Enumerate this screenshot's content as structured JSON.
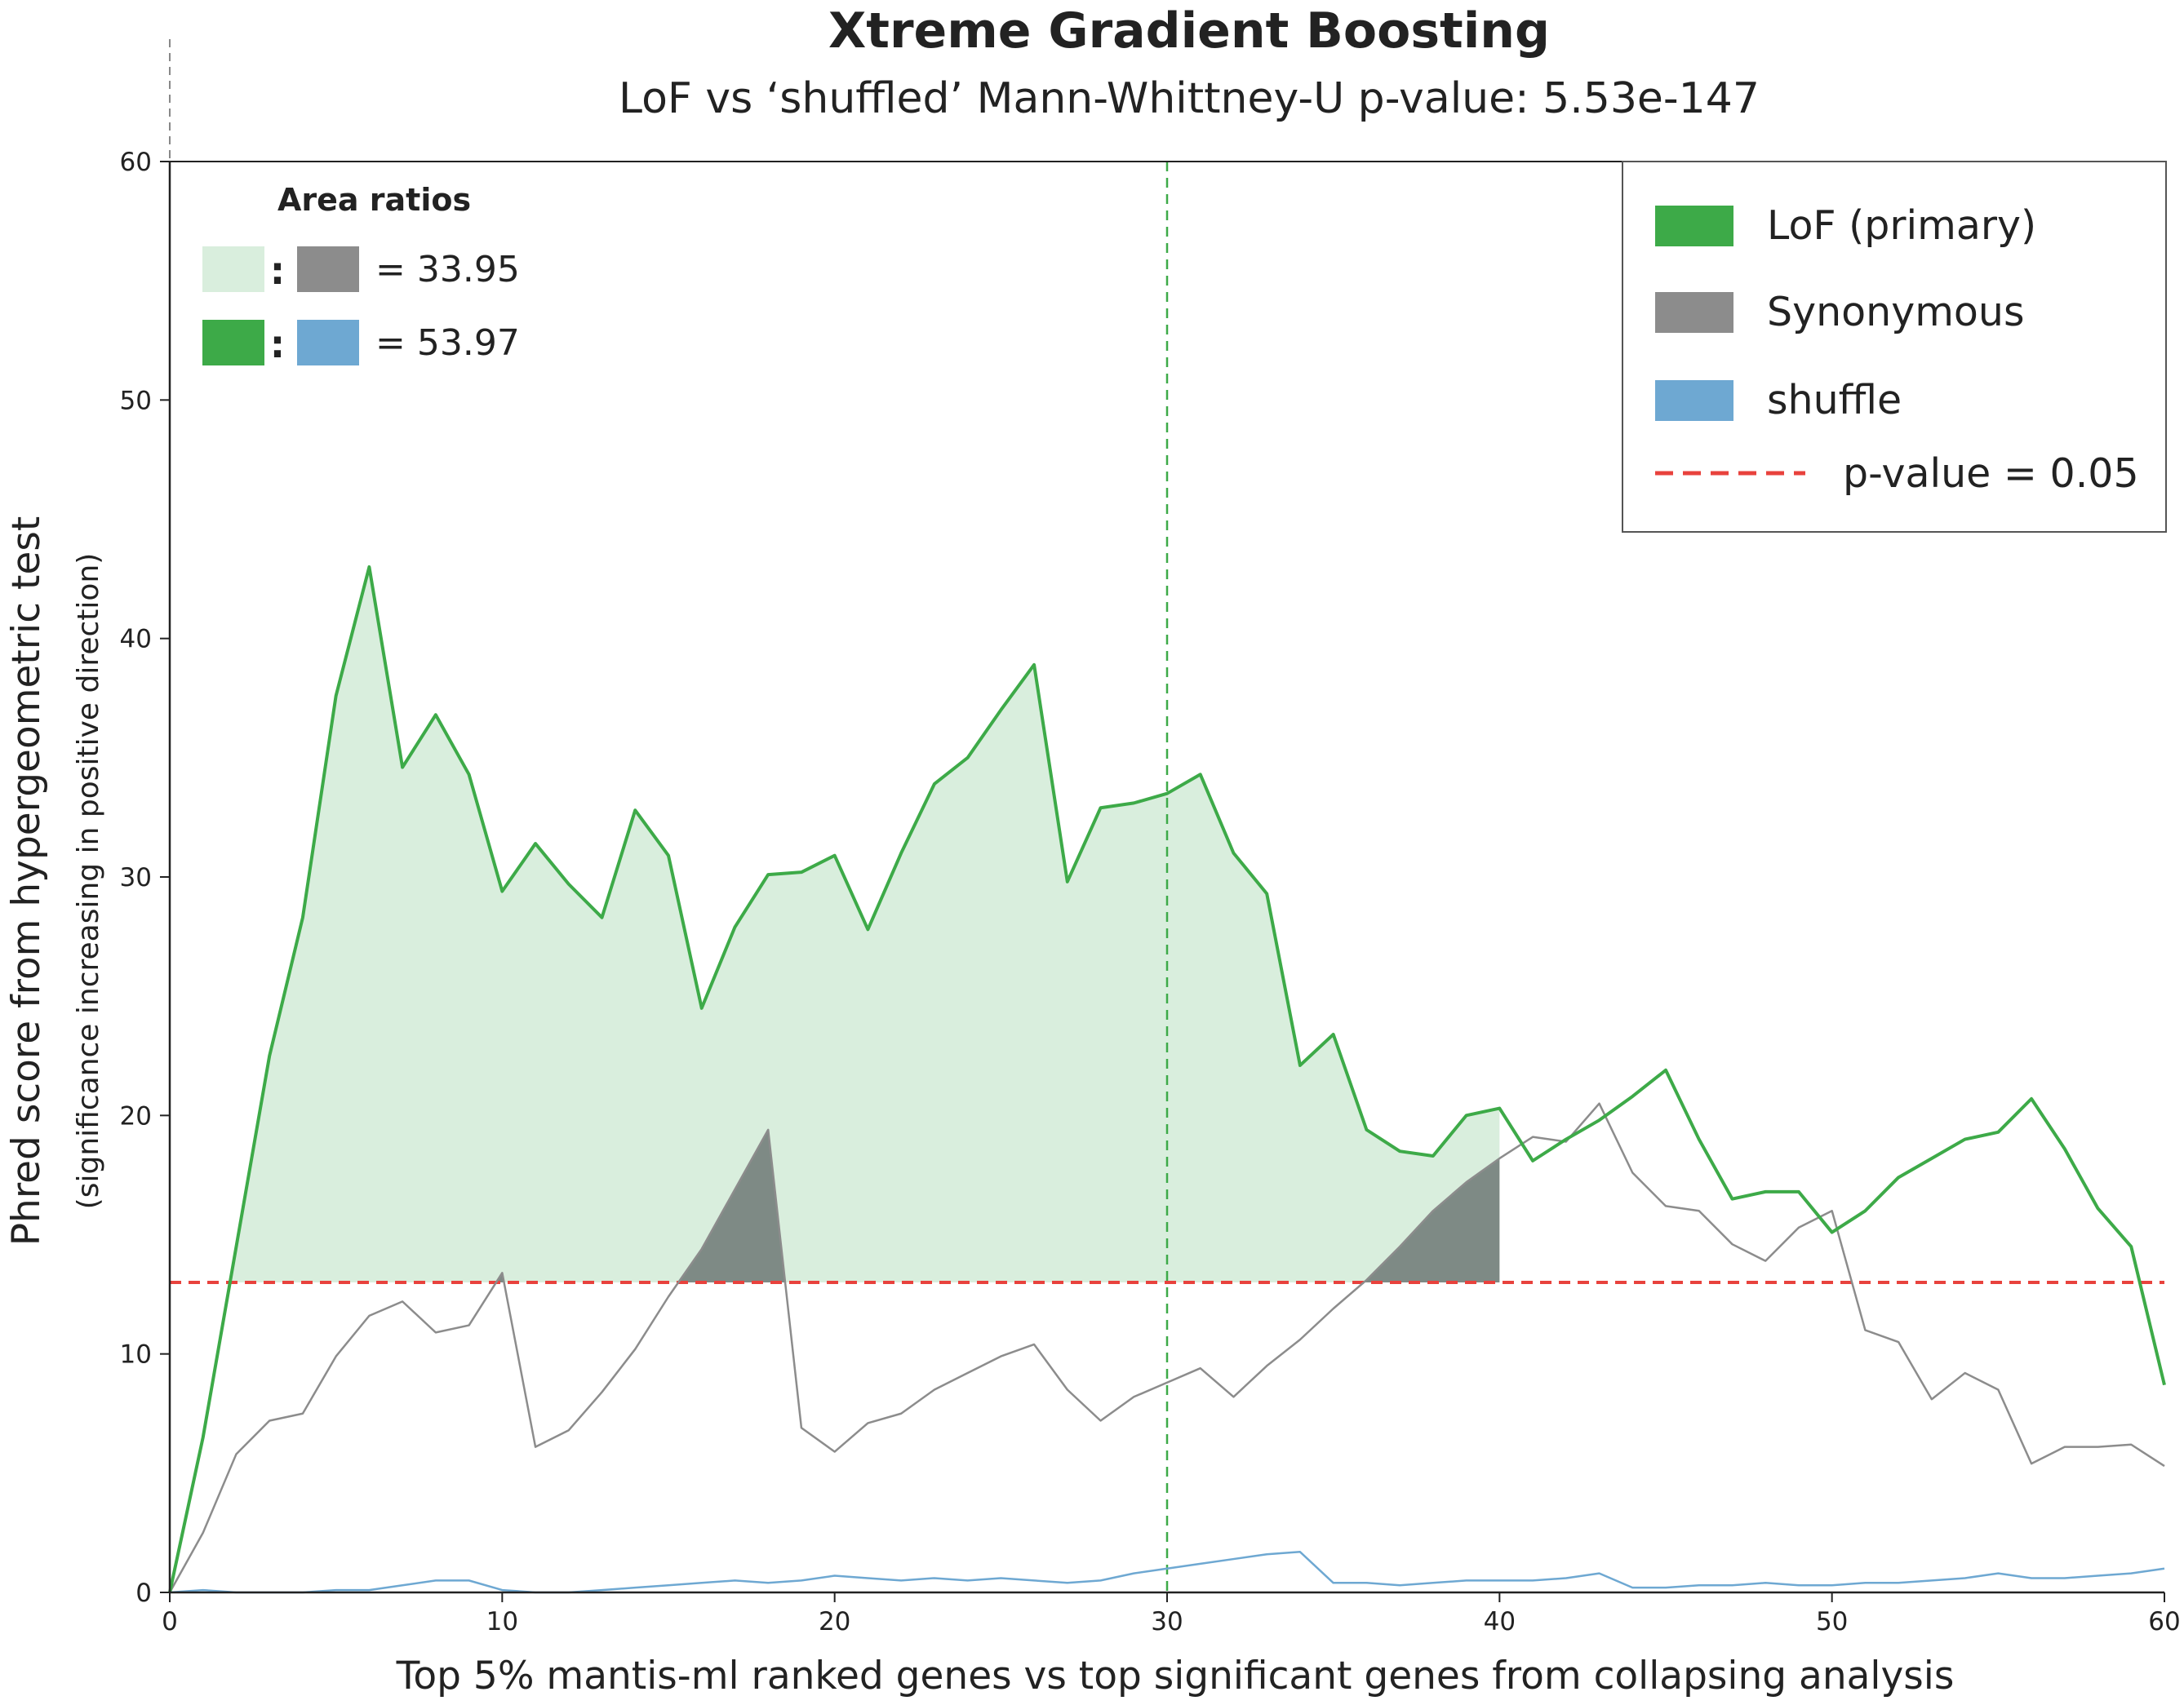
{
  "chart_data": {
    "type": "line",
    "title": "Xtreme Gradient Boosting",
    "subtitle": "LoF vs ‘shuffled’ Mann-Whittney-U p-value: 5.53e-147",
    "xlabel": "Top 5% mantis-ml ranked genes vs top significant genes from collapsing analysis",
    "ylabel": "Phred score from hypergeometric test",
    "ylabel_sub": "(significance increasing in positive direction)",
    "xlim": [
      0,
      60
    ],
    "ylim": [
      0,
      60
    ],
    "xticks": [
      0,
      10,
      20,
      30,
      40,
      50,
      60
    ],
    "yticks": [
      0,
      10,
      20,
      30,
      40,
      50,
      60
    ],
    "threshold": 13,
    "vline_x": 30,
    "shade_limit_x": 40,
    "x": [
      0,
      1,
      2,
      3,
      4,
      5,
      6,
      7,
      8,
      9,
      10,
      11,
      12,
      13,
      14,
      15,
      16,
      17,
      18,
      19,
      20,
      21,
      22,
      23,
      24,
      25,
      26,
      27,
      28,
      29,
      30,
      31,
      32,
      33,
      34,
      35,
      36,
      37,
      38,
      39,
      40,
      41,
      42,
      43,
      44,
      45,
      46,
      47,
      48,
      49,
      50,
      51,
      52,
      53,
      54,
      55,
      56,
      57,
      58,
      59,
      60
    ],
    "series": [
      {
        "name": "LoF (primary)",
        "color": "#3daa48",
        "width": 4,
        "values": [
          0,
          6.5,
          14.5,
          22.5,
          28.3,
          37.6,
          43,
          34.6,
          36.8,
          34.3,
          29.4,
          31.4,
          29.7,
          28.3,
          32.8,
          30.9,
          24.5,
          27.9,
          30.1,
          30.2,
          30.9,
          27.8,
          31,
          33.9,
          35,
          37,
          38.9,
          29.8,
          32.9,
          33.1,
          33.5,
          34.3,
          31,
          29.3,
          22.1,
          23.4,
          19.4,
          18.5,
          18.3,
          20,
          20.3,
          18.1,
          19,
          19.8,
          20.8,
          21.9,
          19,
          16.5,
          16.8,
          16.8,
          15.1,
          16,
          17.4,
          18.2,
          19,
          19.3,
          20.7,
          18.6,
          16.1,
          14.5,
          8.7
        ]
      },
      {
        "name": "Synonymous",
        "color": "#8c8c8c",
        "width": 2.5,
        "values": [
          0,
          2.5,
          5.8,
          7.2,
          7.5,
          9.9,
          11.6,
          12.2,
          10.9,
          11.2,
          13.4,
          6.1,
          6.8,
          8.4,
          10.2,
          12.4,
          14.4,
          16.9,
          19.4,
          6.9,
          5.9,
          7.1,
          7.5,
          8.5,
          9.2,
          9.9,
          10.4,
          8.5,
          7.2,
          8.2,
          8.8,
          9.4,
          8.2,
          9.5,
          10.6,
          11.9,
          13.1,
          14.5,
          16,
          17.2,
          18.2,
          19.1,
          18.9,
          20.5,
          17.6,
          16.2,
          16,
          14.6,
          13.9,
          15.3,
          16,
          11,
          10.5,
          8.1,
          9.2,
          8.5,
          5.4,
          6.1,
          6.1,
          6.2,
          5.3
        ]
      },
      {
        "name": "shuffle",
        "color": "#6ea8d2",
        "width": 2.5,
        "values": [
          0,
          0.1,
          0,
          0,
          0,
          0.1,
          0.1,
          0.3,
          0.5,
          0.5,
          0.1,
          0,
          0,
          0.1,
          0.2,
          0.3,
          0.4,
          0.5,
          0.4,
          0.5,
          0.7,
          0.6,
          0.5,
          0.6,
          0.5,
          0.6,
          0.5,
          0.4,
          0.5,
          0.8,
          1,
          1.2,
          1.4,
          1.6,
          1.7,
          0.4,
          0.4,
          0.3,
          0.4,
          0.5,
          0.5,
          0.5,
          0.6,
          0.8,
          0.2,
          0.2,
          0.3,
          0.3,
          0.4,
          0.3,
          0.3,
          0.4,
          0.4,
          0.5,
          0.6,
          0.8,
          0.6,
          0.6,
          0.7,
          0.8,
          1
        ]
      }
    ],
    "legend": {
      "placement": "top-right",
      "items": [
        {
          "label": "LoF (primary)",
          "color": "#3daa48",
          "kind": "patch"
        },
        {
          "label": "Synonymous",
          "color": "#8c8c8c",
          "kind": "patch"
        },
        {
          "label": "shuffle",
          "color": "#6ea8d2",
          "kind": "patch"
        },
        {
          "label": "p-value = 0.05",
          "color": "#e8423d",
          "kind": "dashed-line"
        }
      ]
    },
    "area_ratios": {
      "title": "Area ratios",
      "rows": [
        {
          "left_color": "#d9eedd",
          "right_color": "#8c8c8c",
          "value": "= 33.95"
        },
        {
          "left_color": "#3daa48",
          "right_color": "#6ea8d2",
          "value": "= 53.97"
        }
      ]
    },
    "colors": {
      "lof_fill": "#d9eedd",
      "syn_fill": "#7e8a85",
      "threshold_line": "#e8423d",
      "vline": "#3daa48"
    },
    "grid": false
  }
}
